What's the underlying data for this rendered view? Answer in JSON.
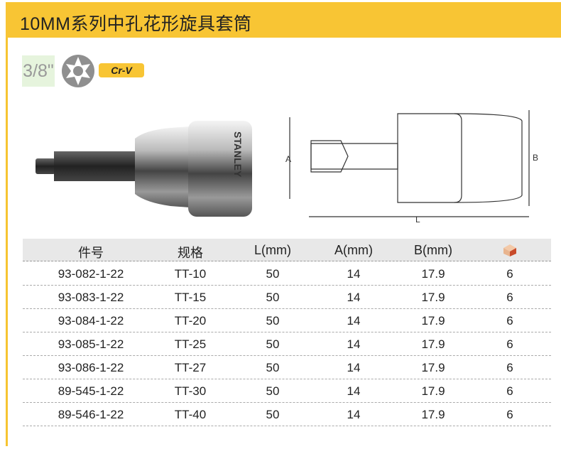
{
  "title": "10MM系列中孔花形旋具套筒",
  "drive_size": "3/8\"",
  "material_badge": "Cr-V",
  "icons": {
    "bit_type": "torx-icon",
    "pack_column": "box-icon"
  },
  "colors": {
    "accent": "#f8c534",
    "size_bg": "#e6f4dd",
    "table_header": "#e8e8e8"
  },
  "diagram": {
    "dim_a": "A",
    "dim_b": "B",
    "dim_l": "L"
  },
  "photo": {
    "brand": "STANLEY"
  },
  "table": {
    "headers": [
      "件号",
      "规格",
      "L(mm)",
      "A(mm)",
      "B(mm)"
    ],
    "rows": [
      [
        "93-082-1-22",
        "TT-10",
        "50",
        "14",
        "17.9",
        "6"
      ],
      [
        "93-083-1-22",
        "TT-15",
        "50",
        "14",
        "17.9",
        "6"
      ],
      [
        "93-084-1-22",
        "TT-20",
        "50",
        "14",
        "17.9",
        "6"
      ],
      [
        "93-085-1-22",
        "TT-25",
        "50",
        "14",
        "17.9",
        "6"
      ],
      [
        "93-086-1-22",
        "TT-27",
        "50",
        "14",
        "17.9",
        "6"
      ],
      [
        "89-545-1-22",
        "TT-30",
        "50",
        "14",
        "17.9",
        "6"
      ],
      [
        "89-546-1-22",
        "TT-40",
        "50",
        "14",
        "17.9",
        "6"
      ]
    ]
  }
}
